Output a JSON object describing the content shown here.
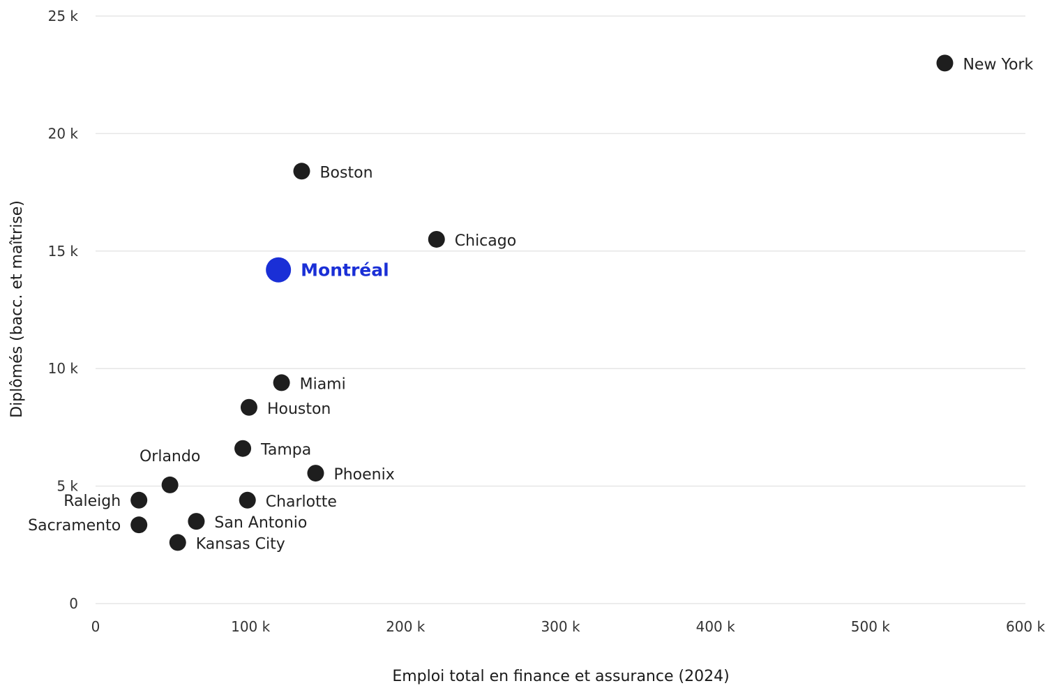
{
  "chart_data": {
    "type": "scatter",
    "xlabel": "Emploi total en finance et assurance (2024)",
    "ylabel": "Diplômés (bacc. et maîtrise)",
    "xlim": [
      0,
      600000
    ],
    "ylim": [
      0,
      25000
    ],
    "xticks": [
      {
        "value": 0,
        "label": "0"
      },
      {
        "value": 100000,
        "label": "100 k"
      },
      {
        "value": 200000,
        "label": "200 k"
      },
      {
        "value": 300000,
        "label": "300 k"
      },
      {
        "value": 400000,
        "label": "400 k"
      },
      {
        "value": 500000,
        "label": "500 k"
      },
      {
        "value": 600000,
        "label": "600 k"
      }
    ],
    "yticks": [
      {
        "value": 0,
        "label": "0"
      },
      {
        "value": 5000,
        "label": "5 k"
      },
      {
        "value": 10000,
        "label": "10 k"
      },
      {
        "value": 15000,
        "label": "15 k"
      },
      {
        "value": 20000,
        "label": "20 k"
      },
      {
        "value": 25000,
        "label": "25 k"
      }
    ],
    "grid": "horizontal",
    "colors": {
      "default": "#1e1e1e",
      "highlight": "#1a2fd6"
    },
    "points": [
      {
        "name": "New York",
        "x": 548000,
        "y": 23000,
        "label_side": "right"
      },
      {
        "name": "Boston",
        "x": 133000,
        "y": 18400,
        "label_side": "right"
      },
      {
        "name": "Chicago",
        "x": 220000,
        "y": 15500,
        "label_side": "right"
      },
      {
        "name": "Montréal",
        "x": 118000,
        "y": 14200,
        "label_side": "right",
        "highlight": true
      },
      {
        "name": "Miami",
        "x": 120000,
        "y": 9400,
        "label_side": "right"
      },
      {
        "name": "Houston",
        "x": 99000,
        "y": 8350,
        "label_side": "right"
      },
      {
        "name": "Tampa",
        "x": 95000,
        "y": 6600,
        "label_side": "right"
      },
      {
        "name": "Phoenix",
        "x": 142000,
        "y": 5550,
        "label_side": "right"
      },
      {
        "name": "Orlando",
        "x": 48000,
        "y": 5050,
        "label_side": "top"
      },
      {
        "name": "Raleigh",
        "x": 28000,
        "y": 4400,
        "label_side": "left"
      },
      {
        "name": "Charlotte",
        "x": 98000,
        "y": 4400,
        "label_side": "right"
      },
      {
        "name": "San Antonio",
        "x": 65000,
        "y": 3500,
        "label_side": "right"
      },
      {
        "name": "Sacramento",
        "x": 28000,
        "y": 3350,
        "label_side": "left"
      },
      {
        "name": "Kansas City",
        "x": 53000,
        "y": 2600,
        "label_side": "right"
      }
    ]
  }
}
